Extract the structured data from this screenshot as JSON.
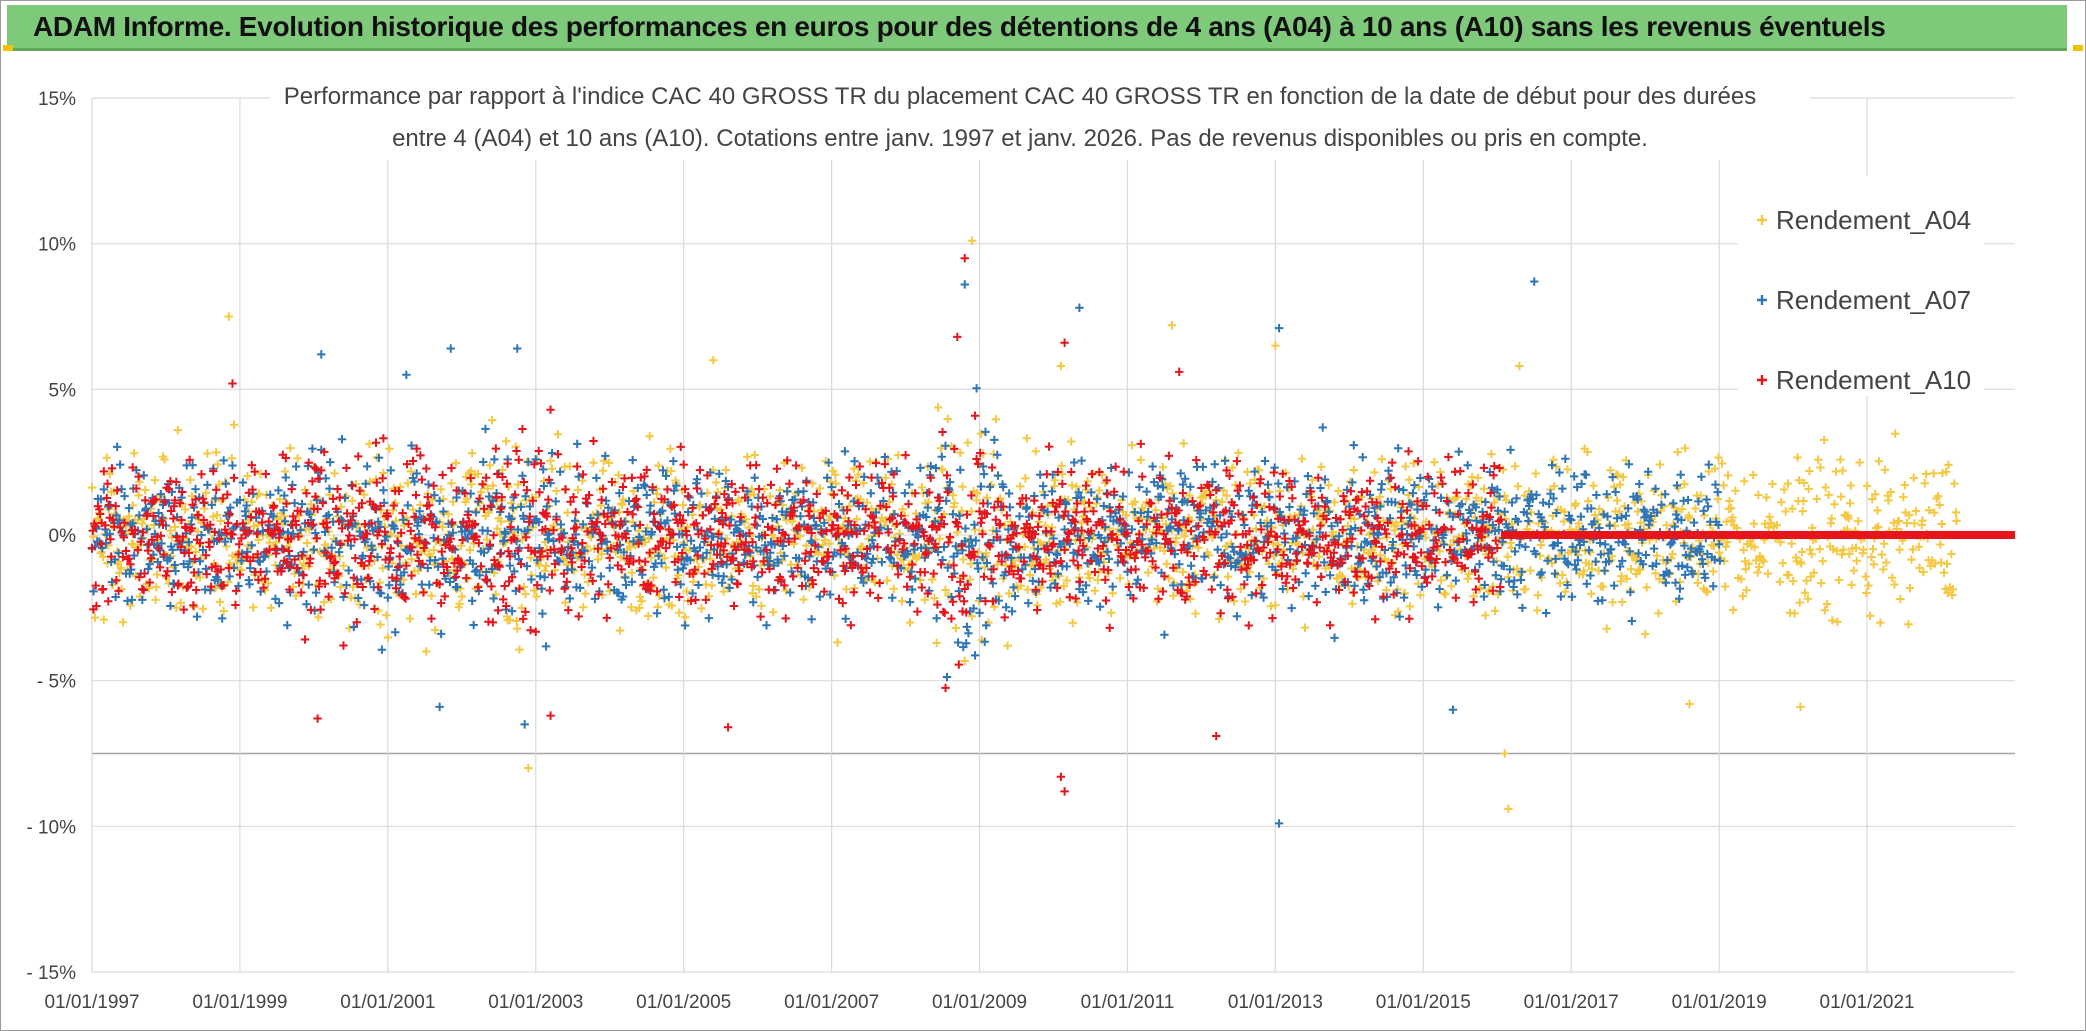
{
  "header": {
    "title": "ADAM Informe. Evolution historique des performances en euros pour des détentions de 4 ans (A04) à 10 ans (A10) sans les revenus éventuels"
  },
  "colors": {
    "title_bar": "#7fc97a",
    "series_a04": "#f5c842",
    "series_a07": "#2e75b6",
    "series_a10": "#e8141c",
    "grid": "#d9d9d9",
    "axis_text": "#444444"
  },
  "chart_data": {
    "type": "scatter",
    "title": "Performance par rapport à l'indice CAC 40 GROSS TR  du placement CAC 40 GROSS TR en fonction de la date de début pour des durées entre 4 (A04) et 10 ans (A10). Cotations entre janv. 1997 et janv. 2026. Pas de revenus disponibles ou pris en compte.",
    "title_lines": [
      "Performance par rapport à l'indice CAC 40 GROSS TR  du placement CAC 40 GROSS TR en fonction de la date de début pour des durées",
      "entre 4 (A04) et 10 ans (A10). Cotations entre janv. 1997 et janv. 2026. Pas de revenus disponibles ou pris en compte."
    ],
    "xlabel": "",
    "ylabel": "",
    "x_range": [
      1997.0,
      2023.0
    ],
    "ylim": [
      -15,
      15
    ],
    "y_ticks": [
      15,
      10,
      5,
      0,
      -5,
      -10,
      -15
    ],
    "y_tick_labels": [
      "15%",
      "10%",
      "5%",
      "0%",
      "- 5%",
      "- 10%",
      "- 15%"
    ],
    "x_ticks": [
      1997,
      1999,
      2001,
      2003,
      2005,
      2007,
      2009,
      2011,
      2013,
      2015,
      2017,
      2019,
      2021
    ],
    "x_tick_labels": [
      "01/01/1997",
      "01/01/1999",
      "01/01/2001",
      "01/01/2003",
      "01/01/2005",
      "01/01/2007",
      "01/01/2009",
      "01/01/2011",
      "01/01/2013",
      "01/01/2015",
      "01/01/2017",
      "01/01/2019",
      "01/01/2021"
    ],
    "grid": true,
    "legend_position": "top-right",
    "series": [
      {
        "name": "Rendement_A04",
        "color": "#f5c842",
        "x_start": 1997.0,
        "x_end": 2022.2,
        "step": 0.02,
        "base_spread": 1.4,
        "outliers": [
          [
            1998.85,
            7.5
          ],
          [
            2002.9,
            -8.0
          ],
          [
            2008.9,
            10.1
          ],
          [
            2011.6,
            7.2
          ],
          [
            2016.15,
            -9.4
          ],
          [
            2016.1,
            -7.5
          ],
          [
            2013.0,
            6.5
          ],
          [
            2005.4,
            6.0
          ],
          [
            2020.1,
            -5.9
          ],
          [
            2018.6,
            -5.8
          ],
          [
            2010.1,
            5.8
          ],
          [
            2016.3,
            5.8
          ]
        ]
      },
      {
        "name": "Rendement_A07",
        "color": "#2e75b6",
        "x_start": 1997.0,
        "x_end": 2019.0,
        "step": 0.02,
        "base_spread": 1.3,
        "outliers": [
          [
            2008.8,
            8.6
          ],
          [
            2016.5,
            8.7
          ],
          [
            2013.05,
            -9.9
          ],
          [
            2013.05,
            7.1
          ],
          [
            2010.35,
            7.8
          ],
          [
            2002.75,
            6.4
          ],
          [
            2001.85,
            6.4
          ],
          [
            2000.1,
            6.2
          ],
          [
            2001.25,
            5.5
          ],
          [
            2002.85,
            -6.5
          ],
          [
            2001.7,
            -5.9
          ],
          [
            2015.4,
            -6.0
          ]
        ]
      },
      {
        "name": "Rendement_A10",
        "color": "#e8141c",
        "x_start": 1997.0,
        "x_end": 2016.05,
        "step": 0.02,
        "base_spread": 1.3,
        "flat_x_start": 2016.05,
        "flat_x_end": 2023.0,
        "flat_y": 0,
        "outliers": [
          [
            2008.8,
            9.5
          ],
          [
            2010.15,
            -8.8
          ],
          [
            2010.1,
            -8.3
          ],
          [
            2010.15,
            6.6
          ],
          [
            2008.7,
            6.8
          ],
          [
            1998.9,
            5.2
          ],
          [
            2000.05,
            -6.3
          ],
          [
            2003.2,
            -6.2
          ],
          [
            2005.6,
            -6.6
          ],
          [
            2011.7,
            5.6
          ],
          [
            2012.2,
            -6.9
          ],
          [
            2003.2,
            4.3
          ]
        ]
      }
    ]
  }
}
